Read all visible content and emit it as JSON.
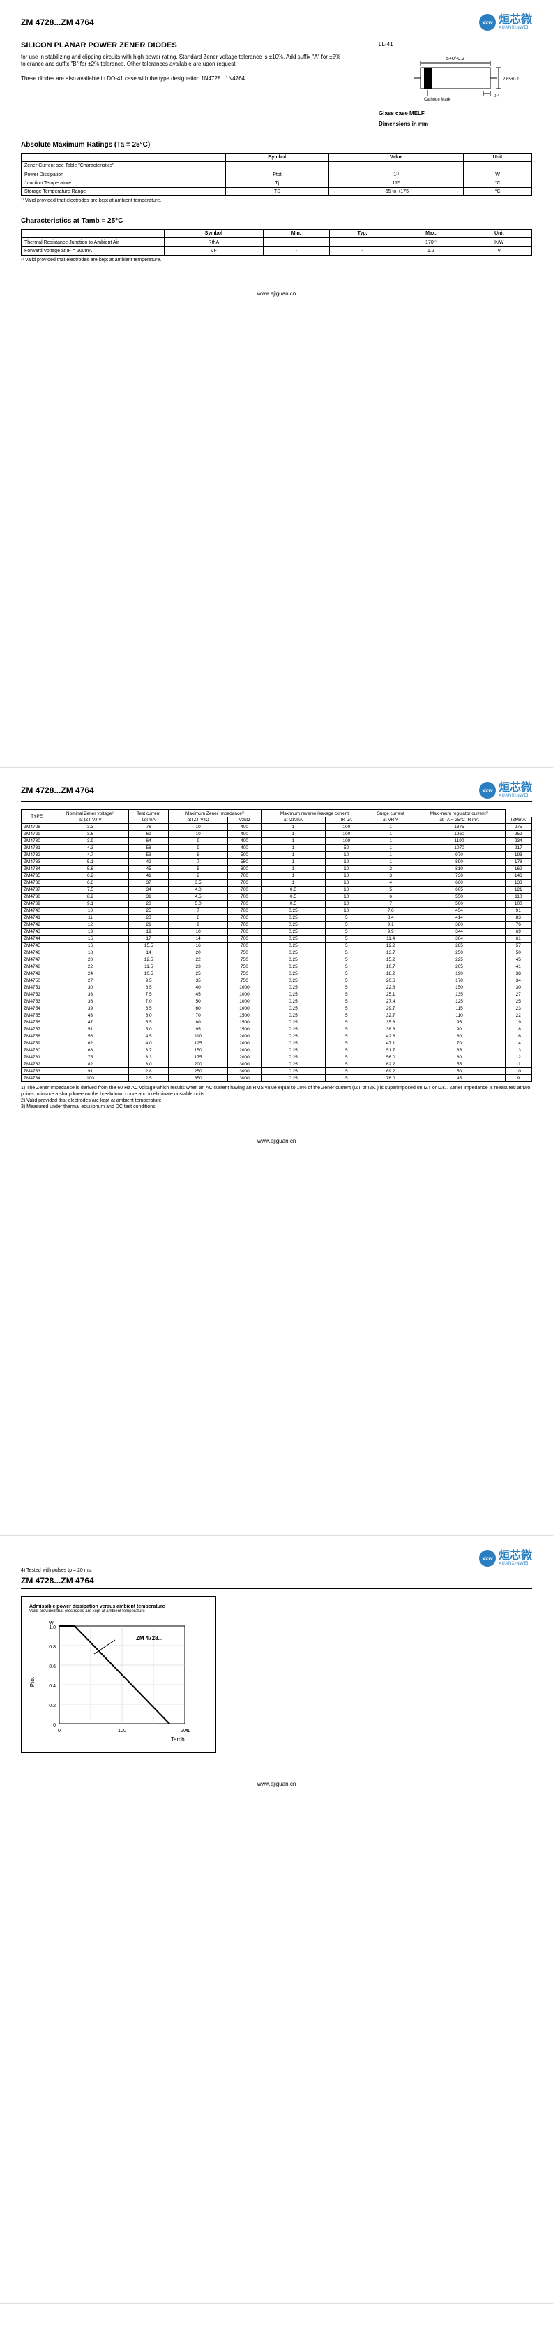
{
  "header": {
    "partRange": "ZM 4728...ZM 4764",
    "logoCn": "烜芯微",
    "logoEn": "XUANXINWEI",
    "logoAbbr": "xxw"
  },
  "title": "SILICON PLANAR POWER ZENER DIODES",
  "desc1": "for use in stabilizing and clipping circuits with high power rating. Standard Zener voltage tolerance is ±10%. Add suffix \"A\" for ±5% tolerance and suffix \"B\" for ±2% tolerance. Other tolerances available are upon request.",
  "desc2": "These diodes are also available in DO-41 case with the type designation 1N4728...1N4764",
  "package": {
    "label": "LL-41",
    "dimTop": "5+0/-0.2",
    "dimSide": "2.65+0.1",
    "dimBottom": "0.4",
    "cathode": "Cathode Mark",
    "caption1": "Glass case MELF",
    "caption2": "Dimensions in mm"
  },
  "ratingsTitle": "Absolute Maximum Ratings (Ta = 25°C)",
  "ratingsHeaders": [
    "",
    "Symbol",
    "Value",
    "Unit"
  ],
  "ratingsRows": [
    [
      "Zener Current see Table \"Characteristics\"",
      "",
      "",
      ""
    ],
    [
      "Power Dissipation",
      "Ptot",
      "1¹⁾",
      "W"
    ],
    [
      "Junction Temperature",
      "Tj",
      "175",
      "°C"
    ],
    [
      "Storage Temperature Range",
      "TS",
      "-65 to +175",
      "°C"
    ]
  ],
  "ratingsNote": "¹⁾ Valid provided that electrodes are kept at ambient temperature.",
  "charTitle": "Characteristics at Tamb = 25°C",
  "charHeaders": [
    "",
    "Symbol",
    "Min.",
    "Typ.",
    "Max.",
    "Unit"
  ],
  "charRows": [
    [
      "Thermal Resistance Junction to Ambient Air",
      "RthA",
      "-",
      "-",
      "170¹⁾",
      "K/W"
    ],
    [
      "Forward Voltage at IF = 200mA",
      "VF",
      "-",
      "-",
      "1.2",
      "V"
    ]
  ],
  "charNote": "¹⁾ Valid provided that electrodes are kept at ambient temperature.",
  "footerUrl": "www.ejiguan.cn",
  "mainTable": {
    "groupHeaders": [
      "TYPE",
      "Nominal Zener voltage³⁾",
      "Test current",
      "Maximum Zener Impedance¹⁾",
      "",
      "Maximum reverse leakage current",
      "",
      "Surge current",
      "Maxi-mum regulator current²⁾"
    ],
    "subHeaders": [
      "",
      "at IZT Vz V",
      "IZTmA",
      "at IZT VzΩ",
      "VzkΩ",
      "at IZKmA",
      "IR μA",
      "at VR V",
      "at TA = 25°C IR mA",
      "IZMmA"
    ],
    "rows": [
      [
        "ZM4728",
        "3.3",
        "76",
        "10",
        "400",
        "1",
        "100",
        "1",
        "1375",
        "275"
      ],
      [
        "ZM4729",
        "3.6",
        "69",
        "10",
        "400",
        "1",
        "100",
        "1",
        "1260",
        "252"
      ],
      [
        "ZM4730",
        "3.9",
        "64",
        "9",
        "400",
        "1",
        "100",
        "1",
        "1190",
        "234"
      ],
      [
        "ZM4731",
        "4.3",
        "58",
        "9",
        "400",
        "1",
        "50",
        "1",
        "1070",
        "217"
      ],
      [
        "ZM4732",
        "4.7",
        "53",
        "8",
        "500",
        "1",
        "10",
        "1",
        "970",
        "193"
      ],
      [
        "ZM4733",
        "5.1",
        "49",
        "7",
        "550",
        "1",
        "10",
        "1",
        "890",
        "178"
      ],
      [
        "ZM4734",
        "5.6",
        "45",
        "5",
        "600",
        "1",
        "10",
        "2",
        "810",
        "162"
      ],
      [
        "ZM4735",
        "6.2",
        "41",
        "2",
        "700",
        "1",
        "10",
        "3",
        "730",
        "146"
      ],
      [
        "ZM4736",
        "6.8",
        "37",
        "3.5",
        "700",
        "1",
        "10",
        "4",
        "660",
        "133"
      ],
      [
        "ZM4737",
        "7.5",
        "34",
        "4.0",
        "700",
        "0.5",
        "10",
        "5",
        "605",
        "121"
      ],
      [
        "ZM4738",
        "8.2",
        "31",
        "4.5",
        "700",
        "0.5",
        "10",
        "6",
        "550",
        "110"
      ],
      [
        "ZM4739",
        "9.1",
        "28",
        "5.0",
        "700",
        "0.5",
        "10",
        "7",
        "500",
        "100"
      ],
      [
        "ZM4740",
        "10",
        "25",
        "7",
        "700",
        "0.25",
        "10",
        "7.6",
        "454",
        "91"
      ],
      [
        "ZM4741",
        "11",
        "23",
        "8",
        "700",
        "0.25",
        "5",
        "8.4",
        "414",
        "83"
      ],
      [
        "ZM4742",
        "12",
        "21",
        "9",
        "700",
        "0.25",
        "5",
        "9.1",
        "380",
        "76"
      ],
      [
        "ZM4743",
        "13",
        "19",
        "10",
        "700",
        "0.25",
        "5",
        "9.9",
        "344",
        "69"
      ],
      [
        "ZM4744",
        "15",
        "17",
        "14",
        "700",
        "0.25",
        "5",
        "11.4",
        "304",
        "61"
      ],
      [
        "ZM4745",
        "16",
        "15.5",
        "16",
        "700",
        "0.25",
        "5",
        "12.2",
        "285",
        "57"
      ],
      [
        "ZM4746",
        "18",
        "14",
        "20",
        "750",
        "0.25",
        "5",
        "13.7",
        "250",
        "50"
      ],
      [
        "ZM4747",
        "20",
        "12.5",
        "22",
        "750",
        "0.25",
        "5",
        "15.2",
        "225",
        "45"
      ],
      [
        "ZM4748",
        "22",
        "11.5",
        "23",
        "750",
        "0.25",
        "5",
        "16.7",
        "205",
        "41"
      ],
      [
        "ZM4749",
        "24",
        "10.5",
        "25",
        "750",
        "0.25",
        "5",
        "18.2",
        "190",
        "38"
      ],
      [
        "ZM4750",
        "27",
        "9.5",
        "35",
        "750",
        "0.25",
        "5",
        "20.6",
        "170",
        "34"
      ],
      [
        "ZM4751",
        "30",
        "8.5",
        "40",
        "1000",
        "0.25",
        "5",
        "22.8",
        "150",
        "30"
      ],
      [
        "ZM4752",
        "33",
        "7.5",
        "45",
        "1000",
        "0.25",
        "5",
        "25.1",
        "135",
        "27"
      ],
      [
        "ZM4753",
        "36",
        "7.0",
        "50",
        "1000",
        "0.25",
        "5",
        "27.4",
        "125",
        "25"
      ],
      [
        "ZM4754",
        "39",
        "6.5",
        "60",
        "1000",
        "0.25",
        "5",
        "29.7",
        "115",
        "23"
      ],
      [
        "ZM4755",
        "43",
        "6.0",
        "70",
        "1500",
        "0.25",
        "5",
        "32.7",
        "110",
        "22"
      ],
      [
        "ZM4756",
        "47",
        "5.5",
        "80",
        "1500",
        "0.25",
        "5",
        "35.8",
        "95",
        "19"
      ],
      [
        "ZM4757",
        "51",
        "5.0",
        "95",
        "1500",
        "0.25",
        "5",
        "38.8",
        "90",
        "18"
      ],
      [
        "ZM4758",
        "56",
        "4.5",
        "110",
        "2000",
        "0.25",
        "5",
        "42.6",
        "80",
        "16"
      ],
      [
        "ZM4759",
        "62",
        "4.0",
        "125",
        "2000",
        "0.25",
        "5",
        "47.1",
        "70",
        "14"
      ],
      [
        "ZM4760",
        "68",
        "3.7",
        "150",
        "2000",
        "0.25",
        "5",
        "51.7",
        "65",
        "13"
      ],
      [
        "ZM4761",
        "75",
        "3.3",
        "175",
        "2000",
        "0.25",
        "5",
        "56.0",
        "60",
        "12"
      ],
      [
        "ZM4762",
        "82",
        "3.0",
        "200",
        "3000",
        "0.25",
        "5",
        "62.2",
        "55",
        "11"
      ],
      [
        "ZM4763",
        "91",
        "2.8",
        "250",
        "3000",
        "0.25",
        "5",
        "69.2",
        "50",
        "10"
      ],
      [
        "ZM4764",
        "100",
        "2.5",
        "350",
        "3000",
        "0.25",
        "5",
        "76.0",
        "45",
        "9"
      ]
    ]
  },
  "mainNotes": [
    "1) The Zener Impedance is derived from the 60 Hz AC voltage which results when an AC current having an RMS value equal to 10% of the Zener current (IZT or IZK ) is superimposed on IZT or IZK . Zener Impedance is measured at two points to insure a sharp knee on the breakdown curve and to eliminate unstable units.",
    "2) Valid provided that electrodes are kept at ambient temperature.",
    "3) Measured under thermal equilibrium and DC test conditions."
  ],
  "page3Note": "4) Tested with pulses tp = 20 ms.",
  "chart": {
    "title": "Admissible power dissipation versus ambient temperature",
    "sub": "Valid provided that electrodes are kept at ambient temperature",
    "ylabel": "Ptot",
    "yunit": "W",
    "yticks": [
      "1.0",
      "0.8",
      "0.6",
      "0.4",
      "0.2",
      "0"
    ],
    "xticks": [
      "0",
      "100",
      "200"
    ],
    "xunit": "°C",
    "xlabel": "Tamb",
    "series": "ZM 4728..."
  }
}
